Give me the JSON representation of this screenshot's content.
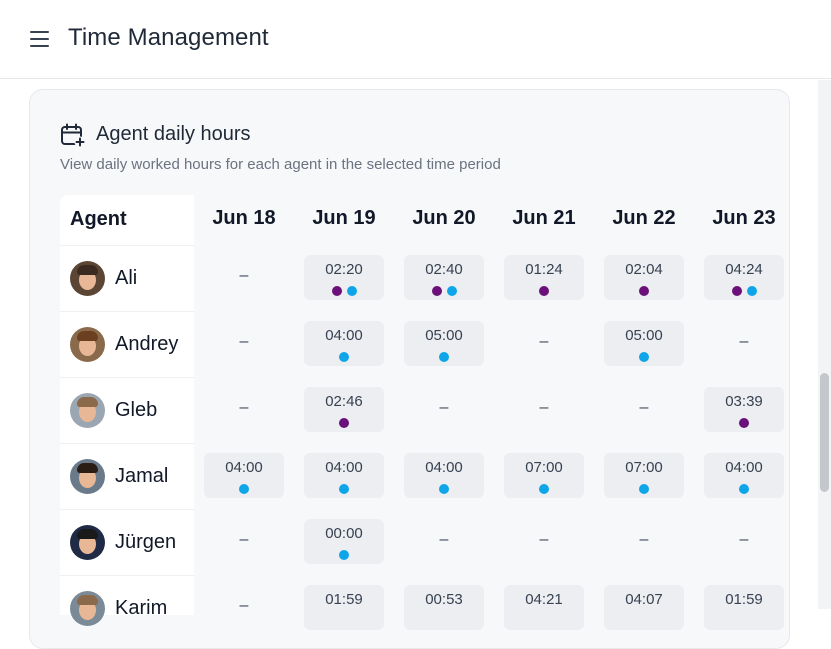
{
  "app": {
    "title": "Time Management"
  },
  "card": {
    "title": "Agent daily hours",
    "subtitle": "View daily worked hours for each agent in the selected time period"
  },
  "table": {
    "agent_header": "Agent",
    "empty_value": "–",
    "dates": [
      "Jun 18",
      "Jun 19",
      "Jun 20",
      "Jun 21",
      "Jun 22",
      "Jun 23"
    ],
    "colors": {
      "purple": "#6b0f7a",
      "blue": "#0ea5e9"
    },
    "agents": [
      {
        "name": "Ali",
        "cells": [
          null,
          {
            "time": "02:20",
            "dots": [
              "purple",
              "blue"
            ]
          },
          {
            "time": "02:40",
            "dots": [
              "purple",
              "blue"
            ]
          },
          {
            "time": "01:24",
            "dots": [
              "purple"
            ]
          },
          {
            "time": "02:04",
            "dots": [
              "purple"
            ]
          },
          {
            "time": "04:24",
            "dots": [
              "purple",
              "blue"
            ]
          }
        ]
      },
      {
        "name": "Andrey",
        "cells": [
          null,
          {
            "time": "04:00",
            "dots": [
              "blue"
            ]
          },
          {
            "time": "05:00",
            "dots": [
              "blue"
            ]
          },
          null,
          {
            "time": "05:00",
            "dots": [
              "blue"
            ]
          },
          null
        ]
      },
      {
        "name": "Gleb",
        "cells": [
          null,
          {
            "time": "02:46",
            "dots": [
              "purple"
            ]
          },
          null,
          null,
          null,
          {
            "time": "03:39",
            "dots": [
              "purple"
            ]
          }
        ]
      },
      {
        "name": "Jamal",
        "cells": [
          {
            "time": "04:00",
            "dots": [
              "blue"
            ]
          },
          {
            "time": "04:00",
            "dots": [
              "blue"
            ]
          },
          {
            "time": "04:00",
            "dots": [
              "blue"
            ]
          },
          {
            "time": "07:00",
            "dots": [
              "blue"
            ]
          },
          {
            "time": "07:00",
            "dots": [
              "blue"
            ]
          },
          {
            "time": "04:00",
            "dots": [
              "blue"
            ]
          }
        ]
      },
      {
        "name": "Jürgen",
        "cells": [
          null,
          {
            "time": "00:00",
            "dots": [
              "blue"
            ]
          },
          null,
          null,
          null,
          null
        ]
      },
      {
        "name": "Karim",
        "cells": [
          null,
          {
            "time": "01:59",
            "dots": []
          },
          {
            "time": "00:53",
            "dots": []
          },
          {
            "time": "04:21",
            "dots": []
          },
          {
            "time": "04:07",
            "dots": []
          },
          {
            "time": "01:59",
            "dots": []
          }
        ]
      }
    ]
  }
}
